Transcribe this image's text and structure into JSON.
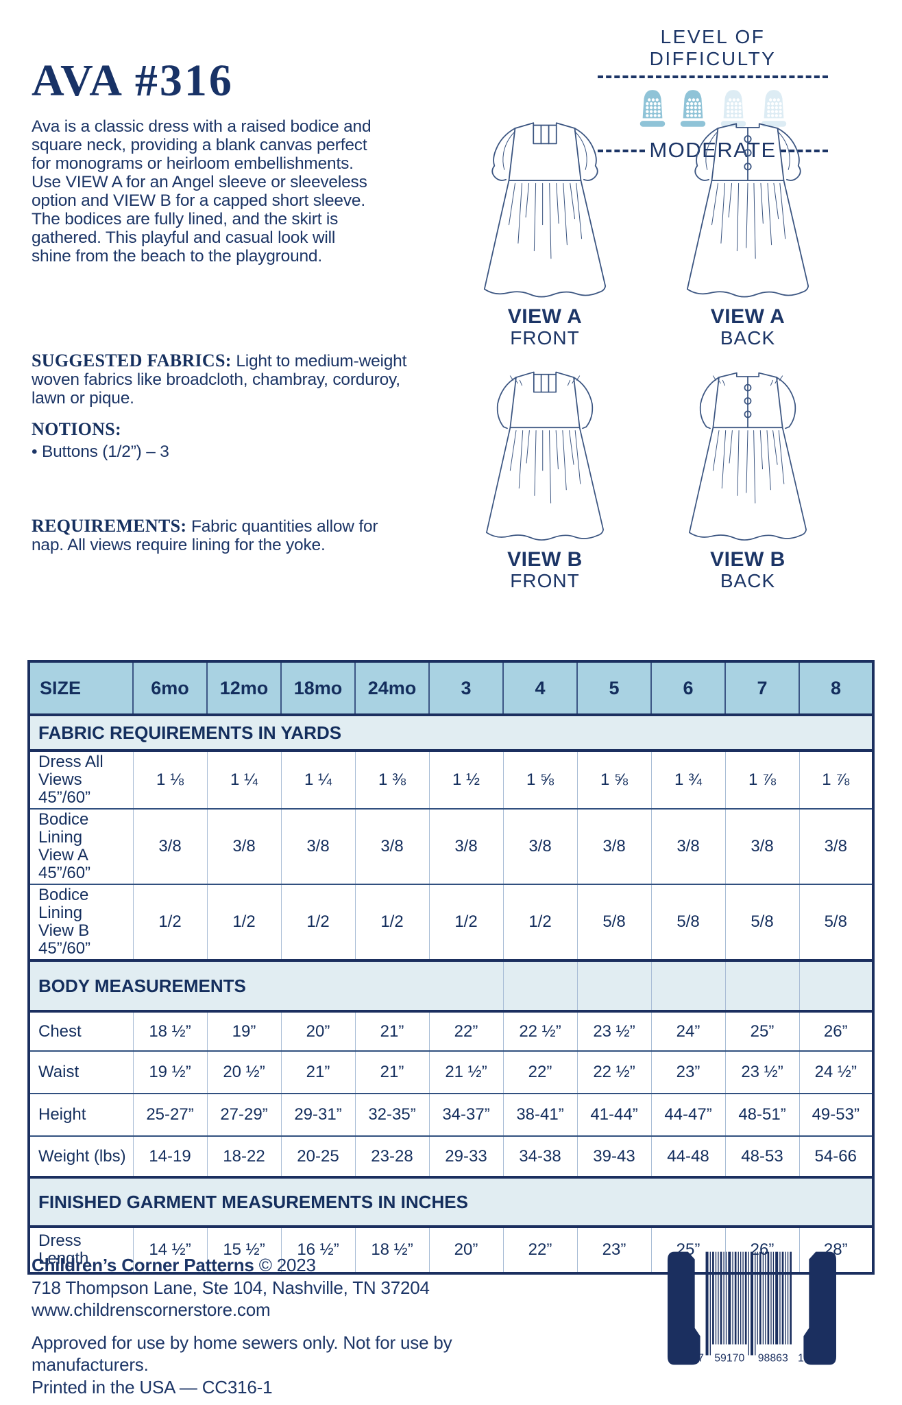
{
  "header": {
    "title": "AVA #316",
    "description": "Ava is a classic dress with a raised bodice and square neck, providing a blank canvas perfect for monograms or heirloom embellishments. Use VIEW A for an Angel sleeve or sleeveless option and VIEW B for a capped short sleeve. The bodices are fully lined, and the skirt is gathered. This playful and casual look will shine from the beach to the playground."
  },
  "info_sections": {
    "suggested_fabrics_label": "SUGGESTED FABRICS:",
    "suggested_fabrics_text": " Light to medium-weight woven fabrics like broadcloth, chambray, corduroy, lawn or pique.",
    "notions_label": "NOTIONS:",
    "notions_bullet": "• Buttons (1/2”) – 3",
    "requirements_label": "REQUIREMENTS:",
    "requirements_text": " Fabric quantities allow for nap. All views require lining for the yoke."
  },
  "difficulty": {
    "heading": "LEVEL OF DIFFICULTY",
    "level": "MODERATE",
    "thimbles_total": 4,
    "thimbles_filled": 2,
    "filled_color": "#8fc3d7",
    "empty_color": "#ddecf4"
  },
  "views": [
    {
      "name": "VIEW A",
      "position": "FRONT"
    },
    {
      "name": "VIEW A",
      "position": "BACK"
    },
    {
      "name": "VIEW B",
      "position": "FRONT"
    },
    {
      "name": "VIEW B",
      "position": "BACK"
    }
  ],
  "size_table": {
    "rows": [
      {
        "type": "header",
        "cells": [
          "SIZE",
          "6mo",
          "12mo",
          "18mo",
          "24mo",
          "3",
          "4",
          "5",
          "6",
          "7",
          "8"
        ]
      },
      {
        "type": "band",
        "span": "full",
        "label": "FABRIC REQUIREMENTS IN YARDS"
      },
      {
        "type": "data",
        "label": "Dress All Views\n45”/60”",
        "values": [
          "1 ⅛",
          "1 ¼",
          "1 ¼",
          "1 ⅜",
          "1 ½",
          "1 ⅝",
          "1 ⅝",
          "1 ¾",
          "1 ⅞",
          "1 ⅞"
        ]
      },
      {
        "type": "data",
        "label": "Bodice Lining\nView A 45”/60”",
        "values": [
          "3/8",
          "3/8",
          "3/8",
          "3/8",
          "3/8",
          "3/8",
          "3/8",
          "3/8",
          "3/8",
          "3/8"
        ]
      },
      {
        "type": "data",
        "label": "Bodice Lining\nView B 45”/60”",
        "values": [
          "1/2",
          "1/2",
          "1/2",
          "1/2",
          "1/2",
          "1/2",
          "5/8",
          "5/8",
          "5/8",
          "5/8"
        ]
      },
      {
        "type": "band",
        "span": "partial",
        "label": "BODY MEASUREMENTS"
      },
      {
        "type": "data",
        "label": "Chest",
        "values": [
          "18 ½”",
          "19”",
          "20”",
          "21”",
          "22”",
          "22 ½”",
          "23 ½”",
          "24”",
          "25”",
          "26”"
        ]
      },
      {
        "type": "data",
        "label": "Waist",
        "values": [
          "19 ½”",
          "20 ½”",
          "21”",
          "21”",
          "21 ½”",
          "22”",
          "22 ½”",
          "23”",
          "23 ½”",
          "24 ½”"
        ]
      },
      {
        "type": "data",
        "label": "Height",
        "values": [
          "25-27”",
          "27-29”",
          "29-31”",
          "32-35”",
          "34-37”",
          "38-41”",
          "41-44”",
          "44-47”",
          "48-51”",
          "49-53”"
        ]
      },
      {
        "type": "data",
        "label": "Weight (lbs)",
        "values": [
          "14-19",
          "18-22",
          "20-25",
          "23-28",
          "29-33",
          "34-38",
          "39-43",
          "44-48",
          "48-53",
          "54-66"
        ]
      },
      {
        "type": "band",
        "span": "full",
        "label": "FINISHED GARMENT MEASUREMENTS IN INCHES"
      },
      {
        "type": "data",
        "label": "Dress Length",
        "values": [
          "14 ½”",
          "15 ½”",
          "16 ½”",
          "18 ½”",
          "20”",
          "22”",
          "23”",
          "25”",
          "26”",
          "28”"
        ]
      }
    ]
  },
  "footer": {
    "brand": "Children’s Corner Patterns",
    "copyright": "© 2023",
    "address": "718 Thompson Lane, Ste 104, Nashville, TN 37204",
    "website": "www.childrenscornerstore.com",
    "legal": "Approved for use by home sewers only. Not for use by manufacturers.",
    "printed": "Printed in the USA — CC316-1"
  },
  "barcode": {
    "left_digit": "7",
    "group1": "59170",
    "group2": "98863",
    "right_digit": "1"
  }
}
